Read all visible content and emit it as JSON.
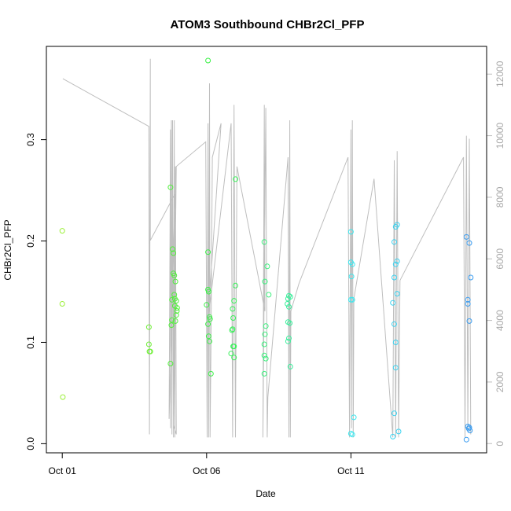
{
  "chart_data": {
    "type": "scatter",
    "title": "ATOM3 Southbound CHBr2Cl_PFP",
    "xlabel": "Date",
    "ylabel": "CHBr2Cl_PFP",
    "x_ticks": [
      {
        "label": "Oct 01",
        "day": 0
      },
      {
        "label": "Oct 06",
        "day": 5
      },
      {
        "label": "Oct 11",
        "day": 10
      }
    ],
    "y_ticks": [
      0.0,
      0.1,
      0.2,
      0.3
    ],
    "y_tick_labels": [
      "0.0",
      "0.1",
      "0.2",
      "0.3"
    ],
    "xlim_days": [
      -0.55,
      14.7
    ],
    "ylim": [
      -0.009,
      0.392
    ],
    "y2lim": [
      -300,
      12900
    ],
    "y2_ticks": [
      0,
      2000,
      4000,
      6000,
      8000,
      10000,
      12000
    ],
    "y2_tick_labels": [
      "0",
      "2000",
      "4000",
      "6000",
      "8000",
      "10000",
      "12000"
    ],
    "secondary_series_color": "#bebebe",
    "point_stroke_width": 1,
    "grid": false,
    "legend": "none",
    "series": [
      {
        "color": "#9cf03a",
        "points": [
          [
            0.0,
            0.21
          ],
          [
            0.0,
            0.138
          ],
          [
            0.02,
            0.046
          ]
        ]
      },
      {
        "color": "#72f03a",
        "points": [
          [
            3.0,
            0.115
          ],
          [
            3.0,
            0.098
          ],
          [
            3.02,
            0.091
          ],
          [
            3.05,
            0.091
          ]
        ]
      },
      {
        "color": "#50f03a",
        "points": [
          [
            3.75,
            0.253
          ],
          [
            3.75,
            0.079
          ],
          [
            3.78,
            0.117
          ],
          [
            3.8,
            0.142
          ],
          [
            3.82,
            0.192
          ],
          [
            3.85,
            0.188
          ],
          [
            3.85,
            0.168
          ],
          [
            3.88,
            0.166
          ],
          [
            3.88,
            0.147
          ],
          [
            3.9,
            0.143
          ],
          [
            3.9,
            0.136
          ],
          [
            3.92,
            0.16
          ],
          [
            3.92,
            0.121
          ],
          [
            3.95,
            0.127
          ],
          [
            3.95,
            0.141
          ],
          [
            3.97,
            0.131
          ],
          [
            3.98,
            0.134
          ],
          [
            3.8,
            0.122
          ]
        ]
      },
      {
        "color": "#3af046",
        "points": [
          [
            5.05,
            0.378
          ],
          [
            5.05,
            0.189
          ],
          [
            5.05,
            0.152
          ],
          [
            5.07,
            0.15
          ],
          [
            5.05,
            0.118
          ],
          [
            5.07,
            0.106
          ],
          [
            5.1,
            0.125
          ],
          [
            5.12,
            0.123
          ],
          [
            5.1,
            0.101
          ],
          [
            5.15,
            0.069
          ],
          [
            5.0,
            0.137
          ]
        ]
      },
      {
        "color": "#3af05a",
        "points": [
          [
            6.0,
            0.261
          ],
          [
            6.0,
            0.156
          ],
          [
            5.95,
            0.141
          ],
          [
            5.9,
            0.133
          ],
          [
            5.92,
            0.124
          ],
          [
            5.9,
            0.113
          ],
          [
            5.88,
            0.112
          ],
          [
            5.92,
            0.096
          ],
          [
            5.95,
            0.096
          ],
          [
            5.85,
            0.089
          ],
          [
            5.95,
            0.085
          ]
        ]
      },
      {
        "color": "#3af07c",
        "points": [
          [
            7.0,
            0.199
          ],
          [
            7.02,
            0.16
          ],
          [
            7.1,
            0.175
          ],
          [
            7.15,
            0.147
          ],
          [
            7.05,
            0.116
          ],
          [
            7.02,
            0.108
          ],
          [
            7.0,
            0.098
          ],
          [
            7.0,
            0.087
          ],
          [
            7.05,
            0.084
          ],
          [
            7.0,
            0.069
          ]
        ]
      },
      {
        "color": "#3af09c",
        "points": [
          [
            7.85,
            0.146
          ],
          [
            7.82,
            0.143
          ],
          [
            7.9,
            0.145
          ],
          [
            7.85,
            0.135
          ],
          [
            7.8,
            0.138
          ],
          [
            7.82,
            0.12
          ],
          [
            7.88,
            0.119
          ],
          [
            7.85,
            0.104
          ],
          [
            7.82,
            0.101
          ],
          [
            7.9,
            0.076
          ]
        ]
      },
      {
        "color": "#3ae8f0",
        "points": [
          [
            10.0,
            0.209
          ],
          [
            10.0,
            0.179
          ],
          [
            10.05,
            0.177
          ],
          [
            10.02,
            0.165
          ],
          [
            10.0,
            0.142
          ],
          [
            10.05,
            0.142
          ],
          [
            10.1,
            0.026
          ],
          [
            10.0,
            0.01
          ],
          [
            10.05,
            0.009
          ]
        ]
      },
      {
        "color": "#3ad2f0",
        "points": [
          [
            11.5,
            0.199
          ],
          [
            11.55,
            0.214
          ],
          [
            11.6,
            0.216
          ],
          [
            11.6,
            0.18
          ],
          [
            11.55,
            0.177
          ],
          [
            11.5,
            0.164
          ],
          [
            11.6,
            0.148
          ],
          [
            11.45,
            0.139
          ],
          [
            11.5,
            0.118
          ],
          [
            11.55,
            0.1
          ],
          [
            11.55,
            0.075
          ],
          [
            11.5,
            0.03
          ],
          [
            11.65,
            0.012
          ],
          [
            11.45,
            0.007
          ]
        ]
      },
      {
        "color": "#3a9cf0",
        "points": [
          [
            14.0,
            0.204
          ],
          [
            14.1,
            0.198
          ],
          [
            14.15,
            0.164
          ],
          [
            14.05,
            0.142
          ],
          [
            14.05,
            0.138
          ],
          [
            14.1,
            0.121
          ],
          [
            14.05,
            0.017
          ],
          [
            14.1,
            0.016
          ],
          [
            14.12,
            0.013
          ],
          [
            14.08,
            0.015
          ],
          [
            14.0,
            0.004
          ]
        ]
      }
    ],
    "secondary_path": [
      [
        0.02,
        11850
      ],
      [
        3.0,
        10300
      ],
      [
        3.02,
        300
      ],
      [
        3.05,
        12500
      ],
      [
        3.05,
        6600
      ],
      [
        3.9,
        8100
      ],
      [
        3.7,
        800
      ],
      [
        3.75,
        10200
      ],
      [
        3.75,
        500
      ],
      [
        3.78,
        10500
      ],
      [
        3.8,
        300
      ],
      [
        3.82,
        10500
      ],
      [
        3.85,
        200
      ],
      [
        3.88,
        10500
      ],
      [
        3.9,
        200
      ],
      [
        3.92,
        9000
      ],
      [
        3.95,
        300
      ],
      [
        3.85,
        600
      ],
      [
        3.95,
        9000
      ],
      [
        4.97,
        9800
      ],
      [
        5.02,
        200
      ],
      [
        5.05,
        10400
      ],
      [
        5.07,
        200
      ],
      [
        5.1,
        11700
      ],
      [
        5.12,
        200
      ],
      [
        5.15,
        3000
      ],
      [
        5.2,
        9300
      ],
      [
        5.5,
        10400
      ],
      [
        5.05,
        4000
      ],
      [
        5.85,
        10400
      ],
      [
        5.9,
        200
      ],
      [
        5.95,
        11000
      ],
      [
        6.0,
        200
      ],
      [
        6.02,
        4100
      ],
      [
        6.05,
        9000
      ],
      [
        7.02,
        4300
      ],
      [
        7.0,
        11000
      ],
      [
        6.95,
        200
      ],
      [
        7.05,
        10900
      ],
      [
        7.1,
        200
      ],
      [
        7.12,
        1500
      ],
      [
        7.82,
        9300
      ],
      [
        7.85,
        200
      ],
      [
        7.88,
        10500
      ],
      [
        7.9,
        200
      ],
      [
        7.92,
        4300
      ],
      [
        8.2,
        5200
      ],
      [
        9.9,
        9300
      ],
      [
        9.95,
        200
      ],
      [
        10.0,
        10200
      ],
      [
        10.02,
        500
      ],
      [
        10.05,
        10500
      ],
      [
        10.08,
        200
      ],
      [
        10.1,
        4700
      ],
      [
        10.8,
        8600
      ],
      [
        11.45,
        200
      ],
      [
        11.5,
        9200
      ],
      [
        11.55,
        200
      ],
      [
        11.6,
        9500
      ],
      [
        11.65,
        200
      ],
      [
        11.7,
        5300
      ],
      [
        13.9,
        9300
      ],
      [
        13.95,
        200
      ],
      [
        14.0,
        10000
      ],
      [
        14.05,
        500
      ],
      [
        14.1,
        9900
      ],
      [
        14.15,
        300
      ]
    ]
  }
}
